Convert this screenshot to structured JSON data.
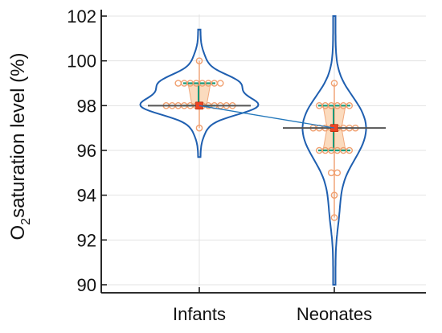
{
  "chart_data": {
    "type": "violin",
    "ylabel_main": "O",
    "ylabel_sub": "2",
    "ylabel_rest": "saturation level (%)",
    "categories": [
      "Infants",
      "Neonates"
    ],
    "ylim": [
      90,
      102
    ],
    "yticks": [
      "90",
      "92",
      "94",
      "96",
      "98",
      "100",
      "102"
    ],
    "grid": true,
    "colors": {
      "violin": "#1f5fb0",
      "points": "#f0a070",
      "box_fill": "#fbd8b8",
      "iqr": "#1a9a7a",
      "median": "#ee4422",
      "mean_line": "#555555",
      "connector": "#2277bb",
      "grid": "#e3e3e3",
      "axis": "#111111"
    },
    "groups": [
      {
        "name": "Infants",
        "median": 98,
        "mean": 98,
        "q1": 98,
        "q3": 99,
        "whisker_low": 97,
        "whisker_high": 100,
        "violin_min": 95.7,
        "violin_max": 101.4,
        "points": [
          {
            "y": 100,
            "n": 1
          },
          {
            "y": 99,
            "n": 8
          },
          {
            "y": 98,
            "n": 12
          },
          {
            "y": 97,
            "n": 1
          }
        ]
      },
      {
        "name": "Neonates",
        "median": 97,
        "mean": 97,
        "q1": 96,
        "q3": 98,
        "whisker_low": 93,
        "whisker_high": 99,
        "violin_min": 90,
        "violin_max": 102,
        "points": [
          {
            "y": 99,
            "n": 1
          },
          {
            "y": 98,
            "n": 6
          },
          {
            "y": 97,
            "n": 8
          },
          {
            "y": 96,
            "n": 6
          },
          {
            "y": 95,
            "n": 2
          },
          {
            "y": 94,
            "n": 1
          },
          {
            "y": 93,
            "n": 1
          }
        ]
      }
    ]
  }
}
